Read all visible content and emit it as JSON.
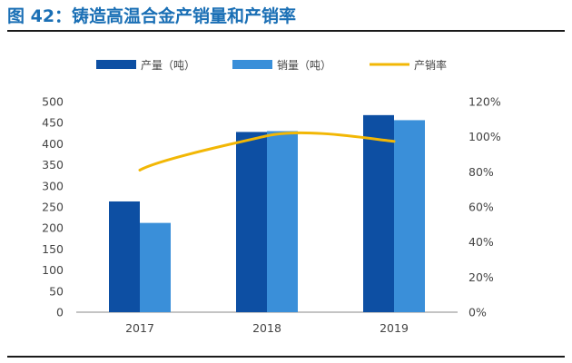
{
  "figure": {
    "title": "图 42：铸造高温合金产销量和产销率"
  },
  "legend": {
    "production_label": "产量（吨）",
    "sales_label": "销量（吨）",
    "rate_label": "产销率"
  },
  "colors": {
    "production": "#0d4fa3",
    "sales": "#3a8fd9",
    "rate": "#f2b705",
    "title": "#1a6fb5"
  },
  "chart_data": {
    "type": "bar",
    "categories": [
      "2017",
      "2018",
      "2019"
    ],
    "series": [
      {
        "name": "产量（吨）",
        "type": "bar",
        "axis": "left",
        "values": [
          263,
          428,
          468
        ]
      },
      {
        "name": "销量（吨）",
        "type": "bar",
        "axis": "left",
        "values": [
          212,
          430,
          456
        ]
      },
      {
        "name": "产销率",
        "type": "line",
        "axis": "right",
        "values": [
          81,
          100.5,
          97.4
        ]
      }
    ],
    "left_axis": {
      "ylim": [
        0,
        500
      ],
      "ticks": [
        "0",
        "50",
        "100",
        "150",
        "200",
        "250",
        "300",
        "350",
        "400",
        "450",
        "500"
      ]
    },
    "right_axis": {
      "ylim": [
        0,
        120
      ],
      "ticks": [
        "0%",
        "20%",
        "40%",
        "60%",
        "80%",
        "100%",
        "120%"
      ]
    },
    "legend_position": "top",
    "grid": false
  }
}
